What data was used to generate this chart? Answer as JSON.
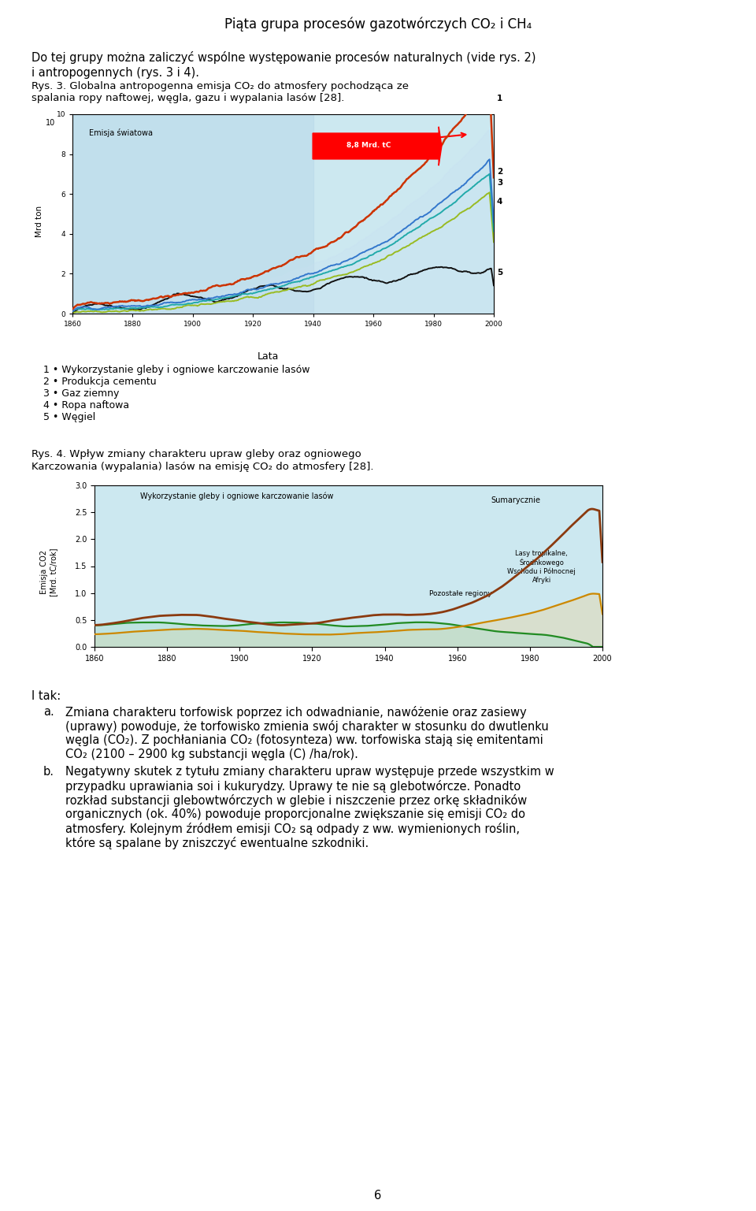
{
  "page_number": "6",
  "title_text": "Piąta grupa procesów gazotwórczych CO",
  "title_sub2": "₂",
  "title_mid": " i CH",
  "title_sup4": "4",
  "para1_line1": "Do tej grupy można zaliczyć wspólne występowanie procesów naturalnych (vide rys. 2)",
  "para1_line2": "i antropogennych (rys. 3 i 4).",
  "cap1_pre": "Rys. 3. Globalna antropogenna emisja CO",
  "cap1_sub": "₂",
  "cap1_post": " do atmosfery pochodząca ze",
  "cap1_line2": "spalania ropy naftowej, węgla, gazu i wypalania lasów [28].",
  "chart1_ylabel": "Mrd ton",
  "chart1_xlabel": "Lata",
  "chart1_annotation": "8,8 Mrd. tC",
  "chart1_inner_label": "Emisja światowa",
  "legend1": [
    "1 • Wykorzystanie gleby i ogniowe karczowanie lasów",
    "2 • Produkcja cementu",
    "3 • Gaz ziemny",
    "4 • Ropa naftowa",
    "5 • Węgiel"
  ],
  "cap2_line1": "Rys. 4. Wpływ zmiany charakteru upraw gleby oraz ogniowego",
  "cap2_pre": "Karczowania (wypalania) lasów na emisję CO",
  "cap2_sub": "₂",
  "cap2_post": " do atmosfery [28].",
  "chart2_ylabel": "Emisja CO2\n[Mrd. tC/rok]",
  "chart2_inner_title": "Wykorzystanie gleby i ogniowe karczowanie lasów",
  "chart2_label_sum": "Sumarycznie",
  "chart2_label_trop": "Lasy tropikalne,\nŚrodnkowego\nWschodu i Północnej\nAfryki",
  "chart2_label_rest": "Pozostałe regiony",
  "itak": "I tak:",
  "item_a_bullet": "a.",
  "item_a_lines": [
    "Zmiana charakteru torfowisk poprzez ich odwadnianie, nawóżenie oraz zasiewy",
    "(uprawy) powoduje, że torfowisko zmienia swój charakter w stosunku do dwutlenku",
    "węgla (CO₂). Z pochłaniania CO₂ (fotosynteza) ww. torfowiska stają się emitentami",
    "CO₂ (2100 – 2900 kg substancji węgla (C) /ha/rok)."
  ],
  "item_b_bullet": "b.",
  "item_b_lines": [
    "Negatywny skutek z tytułu zmiany charakteru upraw występuje przede wszystkim w",
    "przypadku uprawiania soi i kukurydzy. Uprawy te nie są glebotwórcze. Ponadto",
    "rozkład substancji glebowtwórczych w glebie i niszczenie przez orkę składników",
    "organicznych (ok. 40%) powoduje proporcjonalne zwiększanie się emisji CO₂ do",
    "atmosfery. Kolejnym źródłem emisji CO₂ są odpady z ww. wymienionych roślin,",
    "które są spalane by zniszczyć ewentualne szkodniki."
  ],
  "bg_color": "#ffffff",
  "text_color": "#000000",
  "chart1_bg": "#cce8f0",
  "chart2_bg": "#cce8f0"
}
